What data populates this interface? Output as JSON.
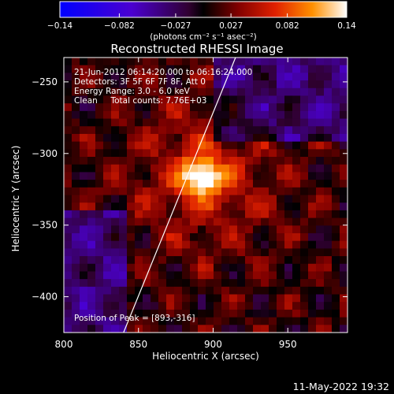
{
  "colorbar": {
    "ticks": [
      "-0.14",
      "-0.082",
      "-0.027",
      "0.027",
      "0.082",
      "0.14"
    ],
    "range": [
      -0.14,
      0.14
    ],
    "unit_label": "(photons cm⁻² s⁻¹ asec⁻²)"
  },
  "chart_data": {
    "type": "heatmap",
    "title": "Reconstructed RHESSI Image",
    "xlabel": "Heliocentric X (arcsec)",
    "ylabel": "Heliocentric Y (arcsec)",
    "xlim": [
      800,
      990
    ],
    "ylim": [
      -425,
      -233
    ],
    "x_ticks": [
      800,
      850,
      900,
      950
    ],
    "y_ticks": [
      -250,
      -300,
      -350,
      -400
    ],
    "peak": {
      "x": 893,
      "y": -316
    },
    "limb_line": [
      [
        840,
        -425
      ],
      [
        915,
        -233
      ]
    ],
    "annotations": [
      "21-Jun-2012 06:14:20.000 to 06:16:24.000",
      "Detectors: 3F 5F 6F 7F 8F, Att 0",
      "Energy Range: 3.0 - 6.0 keV",
      "Clean     Total counts: 7.76E+03",
      "Position of Peak = [893,-316]"
    ]
  },
  "footer": {
    "timestamp": "11-May-2022 19:32"
  }
}
